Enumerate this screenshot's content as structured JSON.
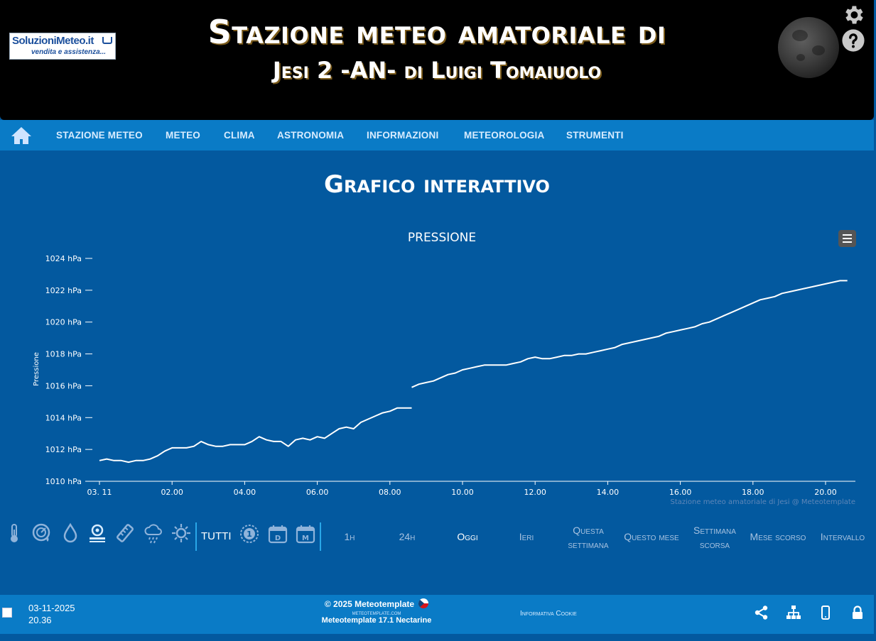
{
  "header": {
    "logo_text": "SoluzioniMeteo.it",
    "logo_subtext": "vendita e assistenza...",
    "title_line1": "Stazione meteo amatoriale di",
    "title_line2": "Jesi 2 -AN- di Luigi Tomaiuolo",
    "icons": [
      "moon-phase-icon",
      "gear-icon",
      "help-icon"
    ]
  },
  "nav": {
    "home_icon": "home-icon",
    "items": [
      "STAZIONE METEO",
      "METEO",
      "CLIMA",
      "ASTRONOMIA",
      "INFORMAZIONI",
      "METEOROLOGIA",
      "STRUMENTI"
    ]
  },
  "page": {
    "title": "Grafico interattivo"
  },
  "chart_data": {
    "type": "line",
    "title": "PRESSIONE",
    "ylabel": "Pressione",
    "ylim": [
      1010,
      1024
    ],
    "y_ticks": [
      "1010 hPa",
      "1012 hPa",
      "1014 hPa",
      "1016 hPa",
      "1018 hPa",
      "1020 hPa",
      "1022 hPa",
      "1024 hPa"
    ],
    "x_ticks": [
      "03. 11",
      "02.00",
      "04.00",
      "06.00",
      "08.00",
      "10.00",
      "12.00",
      "14.00",
      "16.00",
      "18.00",
      "20.00"
    ],
    "x_tick_hours": [
      0,
      2,
      4,
      6,
      8,
      10,
      12,
      14,
      16,
      18,
      20
    ],
    "credit": "Stazione meteo amatoriale di Jesi @ Meteotemplate",
    "series": [
      {
        "name": "Pressione",
        "color": "#ffffff",
        "segments": [
          [
            [
              0.0,
              1011.3
            ],
            [
              0.2,
              1011.4
            ],
            [
              0.4,
              1011.3
            ],
            [
              0.6,
              1011.3
            ],
            [
              0.8,
              1011.2
            ],
            [
              1.0,
              1011.3
            ],
            [
              1.2,
              1011.3
            ],
            [
              1.4,
              1011.4
            ],
            [
              1.6,
              1011.6
            ],
            [
              1.8,
              1011.9
            ],
            [
              2.0,
              1012.1
            ],
            [
              2.2,
              1012.1
            ],
            [
              2.4,
              1012.1
            ],
            [
              2.6,
              1012.2
            ],
            [
              2.8,
              1012.5
            ],
            [
              3.0,
              1012.3
            ],
            [
              3.2,
              1012.2
            ],
            [
              3.4,
              1012.2
            ],
            [
              3.6,
              1012.3
            ],
            [
              3.8,
              1012.3
            ],
            [
              4.0,
              1012.3
            ],
            [
              4.2,
              1012.5
            ],
            [
              4.4,
              1012.8
            ],
            [
              4.6,
              1012.6
            ],
            [
              4.8,
              1012.5
            ],
            [
              5.0,
              1012.5
            ],
            [
              5.2,
              1012.2
            ],
            [
              5.4,
              1012.6
            ],
            [
              5.6,
              1012.7
            ],
            [
              5.8,
              1012.6
            ],
            [
              6.0,
              1012.8
            ],
            [
              6.2,
              1012.7
            ],
            [
              6.4,
              1013.0
            ],
            [
              6.6,
              1013.3
            ],
            [
              6.8,
              1013.4
            ],
            [
              7.0,
              1013.3
            ],
            [
              7.2,
              1013.7
            ],
            [
              7.4,
              1013.9
            ],
            [
              7.6,
              1014.1
            ],
            [
              7.8,
              1014.3
            ],
            [
              8.0,
              1014.4
            ],
            [
              8.2,
              1014.6
            ],
            [
              8.4,
              1014.6
            ],
            [
              8.6,
              1014.6
            ]
          ],
          [
            [
              8.6,
              1015.9
            ],
            [
              8.8,
              1016.1
            ],
            [
              9.0,
              1016.2
            ],
            [
              9.2,
              1016.3
            ],
            [
              9.4,
              1016.5
            ],
            [
              9.6,
              1016.7
            ],
            [
              9.8,
              1016.8
            ],
            [
              10.0,
              1017.0
            ],
            [
              10.2,
              1017.1
            ],
            [
              10.4,
              1017.2
            ],
            [
              10.6,
              1017.3
            ],
            [
              10.8,
              1017.3
            ],
            [
              11.0,
              1017.3
            ],
            [
              11.2,
              1017.3
            ],
            [
              11.4,
              1017.4
            ],
            [
              11.6,
              1017.5
            ],
            [
              11.8,
              1017.7
            ],
            [
              12.0,
              1017.8
            ],
            [
              12.2,
              1017.7
            ],
            [
              12.4,
              1017.7
            ],
            [
              12.6,
              1017.8
            ],
            [
              12.8,
              1017.9
            ],
            [
              13.0,
              1017.9
            ],
            [
              13.2,
              1018.0
            ],
            [
              13.4,
              1018.0
            ],
            [
              13.6,
              1018.1
            ],
            [
              13.8,
              1018.2
            ],
            [
              14.0,
              1018.3
            ],
            [
              14.2,
              1018.4
            ],
            [
              14.4,
              1018.6
            ],
            [
              14.6,
              1018.7
            ],
            [
              14.8,
              1018.8
            ],
            [
              15.0,
              1018.9
            ],
            [
              15.2,
              1019.0
            ],
            [
              15.4,
              1019.1
            ],
            [
              15.6,
              1019.3
            ],
            [
              15.8,
              1019.4
            ],
            [
              16.0,
              1019.5
            ],
            [
              16.2,
              1019.6
            ],
            [
              16.4,
              1019.7
            ],
            [
              16.6,
              1019.9
            ],
            [
              16.8,
              1020.0
            ],
            [
              17.0,
              1020.2
            ],
            [
              17.2,
              1020.4
            ],
            [
              17.4,
              1020.6
            ],
            [
              17.6,
              1020.8
            ],
            [
              17.8,
              1021.0
            ],
            [
              18.0,
              1021.2
            ],
            [
              18.2,
              1021.4
            ],
            [
              18.4,
              1021.5
            ],
            [
              18.6,
              1021.6
            ],
            [
              18.8,
              1021.8
            ],
            [
              19.0,
              1021.9
            ],
            [
              19.2,
              1022.0
            ],
            [
              19.4,
              1022.1
            ],
            [
              19.6,
              1022.2
            ],
            [
              19.8,
              1022.3
            ],
            [
              20.0,
              1022.4
            ],
            [
              20.2,
              1022.5
            ],
            [
              20.4,
              1022.6
            ],
            [
              20.6,
              1022.6
            ]
          ]
        ]
      }
    ]
  },
  "toolbar": {
    "icons": [
      "thermometer-icon",
      "pressure-gauge-icon",
      "humidity-drop-icon",
      "wind-icon",
      "rain-gauge-icon",
      "precipitation-cloud-icon",
      "sun-icon"
    ],
    "all_label": "TUTTI",
    "period_icons": [
      "one-day-icon",
      "calendar-day-icon",
      "calendar-month-icon"
    ],
    "day_label": "D",
    "month_label": "M",
    "one_label": "1",
    "ranges": [
      "1h",
      "24h",
      "Oggi",
      "Ieri",
      "Questa settimana",
      "Questo mese",
      "Settimana scorsa",
      "Mese scorso",
      "Intervallo"
    ],
    "active_range": "Oggi"
  },
  "footer": {
    "date": "03-11-2025",
    "time": "20.36",
    "copyright": "© 2025  Meteotemplate",
    "site": "meteotemplate.com",
    "version": "Meteotemplate 17.1 Nectarine",
    "cookie": "Informativa Cookie",
    "icons": [
      "share-icon",
      "sitemap-icon",
      "mobile-icon",
      "lock-icon"
    ]
  }
}
